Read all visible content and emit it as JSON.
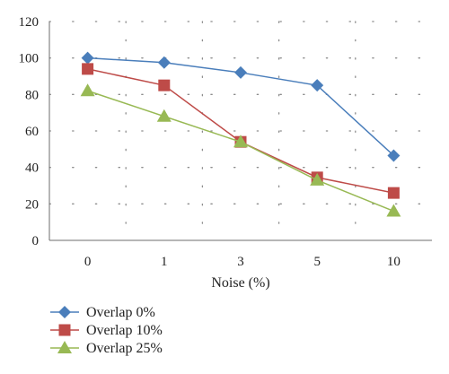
{
  "chart_data": {
    "type": "line",
    "title": "",
    "xlabel": "Noise (%)",
    "ylabel": "",
    "categories": [
      "0",
      "1",
      "3",
      "5",
      "10"
    ],
    "ylim": [
      0,
      120
    ],
    "yticks": [
      0,
      20,
      40,
      60,
      80,
      100,
      120
    ],
    "grid": {
      "horizontal": "dotted",
      "vertical": "dotted"
    },
    "legend_position": "bottom-left",
    "series": [
      {
        "name": "Overlap 0%",
        "values": [
          100,
          97.5,
          92,
          85,
          46.5
        ],
        "color": "#4a7ebb",
        "marker": "diamond"
      },
      {
        "name": "Overlap 10%",
        "values": [
          94,
          85,
          54,
          34.5,
          26
        ],
        "color": "#be4b48",
        "marker": "square"
      },
      {
        "name": "Overlap 25%",
        "values": [
          82,
          68,
          54,
          33,
          16
        ],
        "color": "#98b954",
        "marker": "triangle"
      }
    ]
  }
}
